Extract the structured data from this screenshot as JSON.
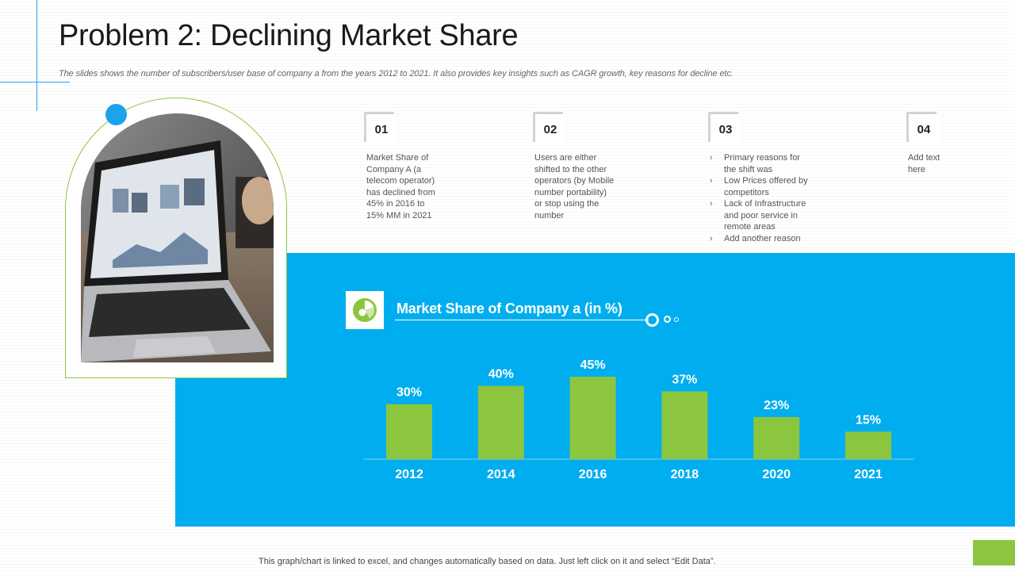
{
  "header": {
    "title": "Problem 2: Declining Market Share",
    "subtitle": "The slides shows the number of subscribers/user base of company a from the years 2012 to 2021. It also provides key insights such as CAGR growth, key reasons for decline etc."
  },
  "steps": [
    {
      "num": "01",
      "lines": [
        "Market Share of",
        "Company A (a",
        "telecom operator)",
        "has declined from",
        "45% in 2016 to",
        "15% MM  in 2021"
      ]
    },
    {
      "num": "02",
      "lines": [
        "Users are either",
        "shifted to the other",
        "operators (by Mobile",
        "number portability)",
        "or stop using the",
        "number"
      ]
    },
    {
      "num": "03",
      "bullets": [
        [
          "Primary reasons for",
          "the shift was"
        ],
        [
          "Low Prices offered by",
          "competitors"
        ],
        [
          "Lack of Infrastructure",
          "and poor service in",
          "remote areas"
        ],
        [
          "Add another reason"
        ]
      ]
    },
    {
      "num": "04",
      "lines": [
        "Add text",
        "here"
      ]
    }
  ],
  "icons": {
    "chart": "pie-chart-icon",
    "photo": "laptop-photo"
  },
  "colors": {
    "panel": "#00aeef",
    "bar": "#8cc63f",
    "accent": "#1ca3ec"
  },
  "chart_data": {
    "type": "bar",
    "title": "Market Share of Company a (in %)",
    "categories": [
      "2012",
      "2014",
      "2016",
      "2018",
      "2020",
      "2021"
    ],
    "values": [
      30,
      40,
      45,
      37,
      23,
      15
    ],
    "value_labels": [
      "30%",
      "40%",
      "45%",
      "37%",
      "23%",
      "15%"
    ],
    "ylim": [
      0,
      45
    ],
    "grid": false,
    "legend": "none"
  },
  "footer": {
    "note": "This graph/chart is linked to excel,  and changes automatically based on data. Just left click on it and select “Edit Data”."
  }
}
